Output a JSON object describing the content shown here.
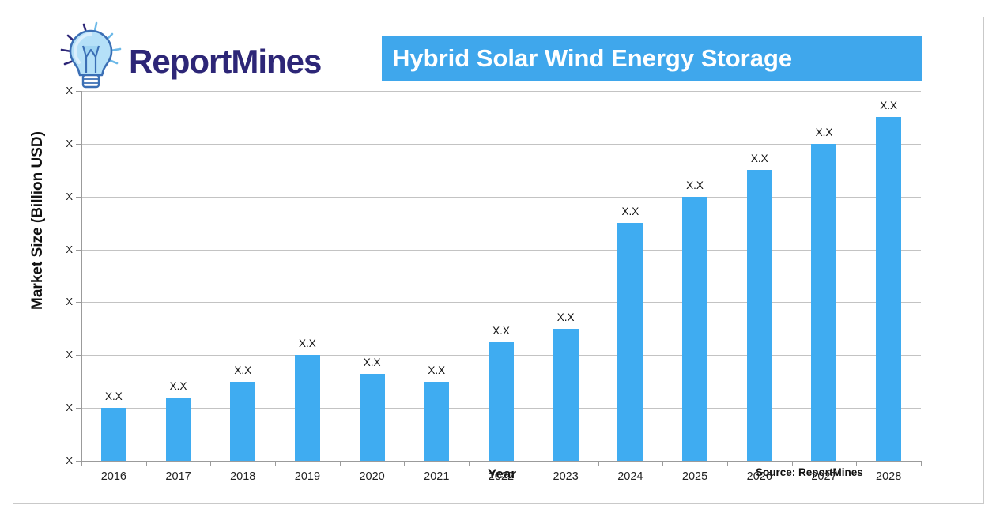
{
  "header": {
    "brand": "ReportMines",
    "title": "Hybrid Solar Wind Energy Storage",
    "logo_icon": "lightbulb-icon"
  },
  "chart_data": {
    "type": "bar",
    "title": "Hybrid Solar Wind Energy Storage",
    "xlabel": "Year",
    "ylabel": "Market Size (Billion USD)",
    "source_note": "Source: ReportMines",
    "categories": [
      "2016",
      "2017",
      "2018",
      "2019",
      "2020",
      "2021",
      "2022",
      "2023",
      "2024",
      "2025",
      "2026",
      "2027",
      "2028"
    ],
    "series": [
      {
        "name": "Market Size",
        "values_relative_est": [
          1.0,
          1.2,
          1.5,
          2.0,
          1.65,
          1.5,
          2.25,
          2.5,
          4.5,
          5.0,
          5.5,
          6.0,
          6.5
        ],
        "value_labels": [
          "X.X",
          "X.X",
          "X.X",
          "X.X",
          "X.X",
          "X.X",
          "X.X",
          "X.X",
          "X.X",
          "X.X",
          "X.X",
          "X.X",
          "X.X"
        ]
      }
    ],
    "y_tick_labels": [
      "X",
      "X",
      "X",
      "X",
      "X",
      "X",
      "X",
      "X"
    ],
    "ylim": [
      0,
      7
    ],
    "gridline_step": 1,
    "grid": true,
    "legend_position": "none"
  },
  "colors": {
    "bar": "#3facf1",
    "banner": "#3fa7ec",
    "brand_navy": "#2d2677",
    "gridline": "#c3c3c3",
    "axis": "#9b9b9b",
    "card_border": "#c9c9c9",
    "text": "#111111",
    "bulb_fill": "#b5e0f8",
    "bulb_stroke": "#3b6fb5"
  }
}
